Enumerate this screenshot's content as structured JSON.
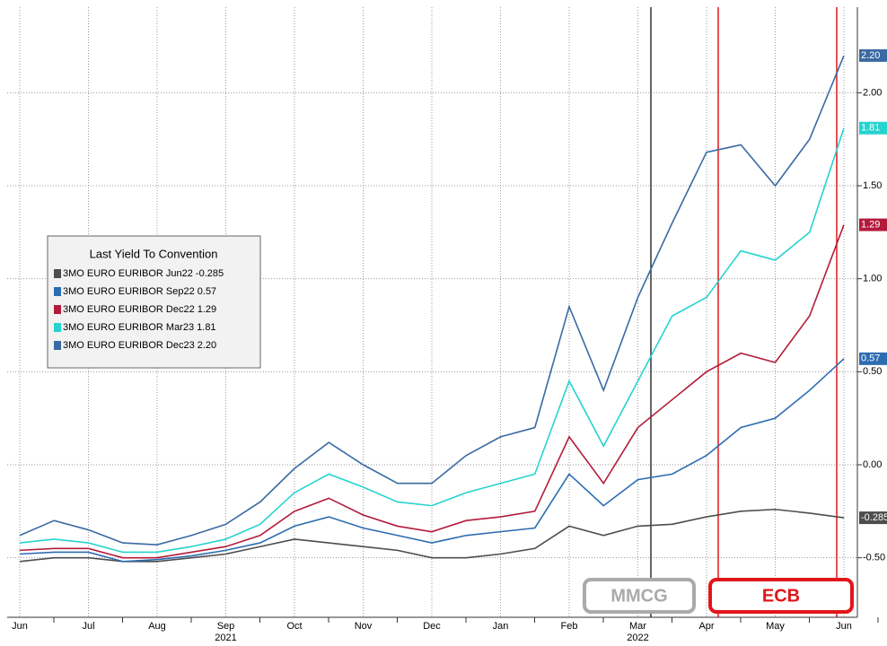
{
  "chart_data": {
    "type": "line",
    "legend_title": "Last Yield To Convention",
    "categories": [
      "Jun",
      null,
      "Jul",
      null,
      "Aug",
      null,
      "Sep",
      null,
      "Oct",
      null,
      "Nov",
      null,
      "Dec",
      null,
      "Jan",
      null,
      "Feb",
      null,
      "Mar",
      null,
      "Apr",
      null,
      "May",
      null,
      "Jun"
    ],
    "year_labels": [
      "2021",
      "2022"
    ],
    "series": [
      {
        "name": "3MO EURO EURIBOR Jun22 -0.285",
        "color": "#4d4d4d",
        "value_label": "-0.285",
        "values": [
          -0.52,
          -0.5,
          -0.5,
          -0.52,
          -0.52,
          -0.5,
          -0.48,
          -0.44,
          -0.4,
          -0.42,
          -0.44,
          -0.46,
          -0.5,
          -0.5,
          -0.48,
          -0.45,
          -0.33,
          -0.38,
          -0.33,
          -0.32,
          -0.28,
          -0.25,
          -0.24,
          -0.26,
          -0.285
        ]
      },
      {
        "name": "3MO EURO EURIBOR Sep22 0.57",
        "color": "#2c6cb0",
        "value_label": "0.57",
        "values": [
          -0.48,
          -0.47,
          -0.47,
          -0.52,
          -0.51,
          -0.49,
          -0.46,
          -0.42,
          -0.33,
          -0.28,
          -0.34,
          -0.38,
          -0.42,
          -0.38,
          -0.36,
          -0.34,
          -0.05,
          -0.22,
          -0.08,
          -0.05,
          0.05,
          0.2,
          0.25,
          0.4,
          0.57
        ]
      },
      {
        "name": "3MO EURO EURIBOR Dec22 1.29",
        "color": "#b31b3b",
        "value_label": "1.29",
        "values": [
          -0.46,
          -0.45,
          -0.45,
          -0.5,
          -0.5,
          -0.47,
          -0.44,
          -0.38,
          -0.25,
          -0.18,
          -0.27,
          -0.33,
          -0.36,
          -0.3,
          -0.28,
          -0.25,
          0.15,
          -0.1,
          0.2,
          0.35,
          0.5,
          0.6,
          0.55,
          0.8,
          1.29
        ]
      },
      {
        "name": "3MO EURO EURIBOR Mar23 1.81",
        "color": "#26d3cf",
        "value_label": "1.81",
        "values": [
          -0.42,
          -0.4,
          -0.42,
          -0.47,
          -0.47,
          -0.44,
          -0.4,
          -0.32,
          -0.15,
          -0.05,
          -0.12,
          -0.2,
          -0.22,
          -0.15,
          -0.1,
          -0.05,
          0.45,
          0.1,
          0.45,
          0.8,
          0.9,
          1.15,
          1.1,
          1.25,
          1.81
        ]
      },
      {
        "name": "3MO EURO EURIBOR Dec23 2.20",
        "color": "#3a6aa3",
        "value_label": "2.20",
        "values": [
          -0.38,
          -0.3,
          -0.35,
          -0.42,
          -0.43,
          -0.38,
          -0.32,
          -0.2,
          -0.02,
          0.12,
          0.0,
          -0.1,
          -0.1,
          0.05,
          0.15,
          0.2,
          0.85,
          0.4,
          0.9,
          1.3,
          1.68,
          1.72,
          1.5,
          1.75,
          2.2
        ]
      }
    ],
    "ylim": [
      -0.82,
      2.46
    ],
    "yticks": [
      {
        "value": -0.5,
        "label": "-0.50"
      },
      {
        "value": 0,
        "label": "0.00"
      },
      {
        "value": 0.5,
        "label": "0.50"
      },
      {
        "value": 1,
        "label": "1.00"
      },
      {
        "value": 1.5,
        "label": "1.50"
      },
      {
        "value": 2,
        "label": "2.00"
      }
    ],
    "grid": true,
    "annotations": [
      "MMCG",
      "ECB"
    ]
  }
}
